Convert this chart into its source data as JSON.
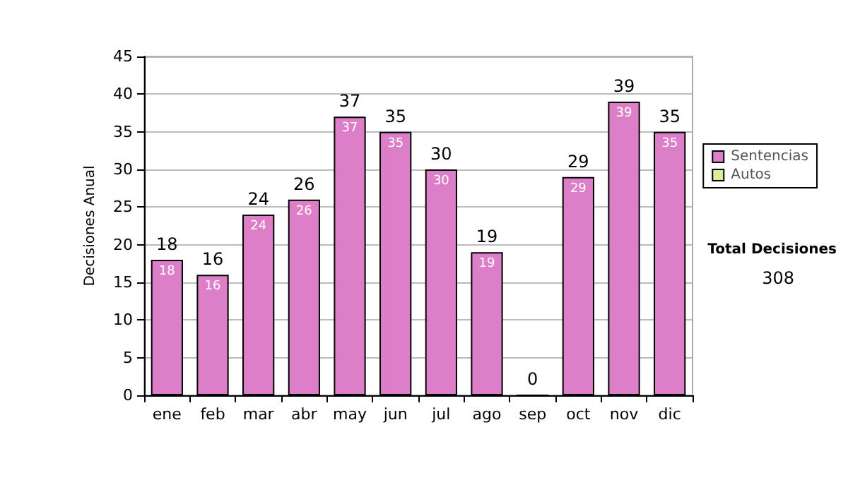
{
  "chart_data": {
    "type": "bar",
    "ylabel": "Decisiones Anual",
    "categories": [
      "ene",
      "feb",
      "mar",
      "abr",
      "may",
      "jun",
      "jul",
      "ago",
      "sep",
      "oct",
      "nov",
      "dic"
    ],
    "series": [
      {
        "name": "Sentencias",
        "color": "#dd7fc8",
        "values": [
          18,
          16,
          24,
          26,
          37,
          35,
          30,
          19,
          0,
          29,
          39,
          35
        ],
        "value_labels": [
          "18",
          "16",
          "24",
          "26",
          "37",
          "35",
          "30",
          "19",
          null,
          "29",
          "39",
          "35"
        ]
      },
      {
        "name": "Autos",
        "color": "#ddee99",
        "values": [
          null,
          null,
          null,
          null,
          null,
          null,
          null,
          null,
          null,
          null,
          null,
          null
        ]
      }
    ],
    "totals": [
      "18",
      "16",
      "24",
      "26",
      "37",
      "35",
      "30",
      "19",
      "0",
      "29",
      "39",
      "35"
    ],
    "stacked": true,
    "ylim": [
      0,
      45
    ],
    "yticks": [
      0,
      5,
      10,
      15,
      20,
      25,
      30,
      35,
      40,
      45
    ],
    "grid": "y",
    "legend": "right",
    "annotations": [
      "Total Decisiones",
      "308"
    ]
  }
}
